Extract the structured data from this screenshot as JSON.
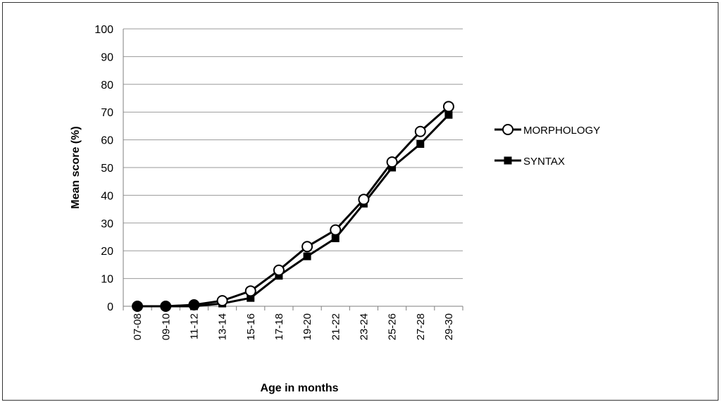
{
  "chart_data": {
    "type": "line",
    "title": "",
    "xlabel": "Age in months",
    "ylabel": "Mean score (%)",
    "ylim": [
      0,
      100
    ],
    "yticks": [
      "0",
      "10",
      "20",
      "30",
      "40",
      "50",
      "60",
      "70",
      "80",
      "90",
      "100"
    ],
    "categories": [
      "07-08",
      "09-10",
      "11-12",
      "13-14",
      "15-16",
      "17-18",
      "19-20",
      "21-22",
      "23-24",
      "25-26",
      "27-28",
      "29-30"
    ],
    "grid": true,
    "legend_position": "right",
    "series": [
      {
        "name": "MORPHOLOGY",
        "marker": "open-circle",
        "color": "#000000",
        "values": [
          0,
          0,
          0.5,
          2,
          5.5,
          13,
          21.5,
          27.5,
          38.5,
          52,
          63,
          72
        ]
      },
      {
        "name": "SYNTAX",
        "marker": "filled-square",
        "color": "#000000",
        "values": [
          0,
          0,
          0,
          1,
          3,
          11,
          18,
          24.5,
          37,
          50,
          58.5,
          69
        ]
      }
    ]
  }
}
